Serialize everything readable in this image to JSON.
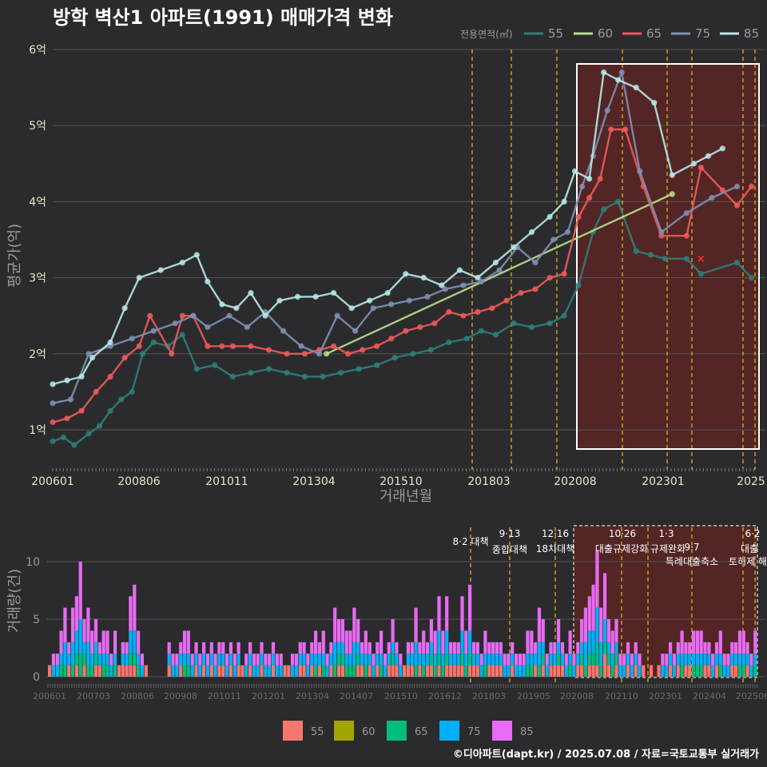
{
  "title": "방학 벽산1 아파트(1991) 매매가격 변화",
  "footer": "©디아파트(dapt.kr) / 2025.07.08 / 자료=국토교통부 실거래가",
  "colors": {
    "bg": "#2b2b2d",
    "grid": "#555555",
    "axis_text": "#e8e4c8",
    "muted": "#9a9a9a",
    "policy_line": "#e0c020",
    "highlight_fill": "#5a2424",
    "s55": "#2e7f7b",
    "s60": "#b8e08a",
    "s65": "#ef5a5a",
    "s75": "#7f8fb5",
    "s85": "#b6e8e6",
    "v55": "#f8766d",
    "v60": "#a3a500",
    "v65": "#00bf7d",
    "v75": "#00b0f6",
    "v85": "#e76bf3"
  },
  "chart_data": [
    {
      "type": "line",
      "title": "방학 벽산1 아파트(1991) 매매가격 변화",
      "xlabel": "거래년월",
      "ylabel": "평균가(억)",
      "x_ticks": [
        "200601",
        "200806",
        "201011",
        "201304",
        "201510",
        "201803",
        "202008",
        "202301",
        "2025"
      ],
      "y_ticks": [
        "1억",
        "2억",
        "3억",
        "4억",
        "5억",
        "6억"
      ],
      "ylim": [
        0.5,
        6.2
      ],
      "legend_title": "전용면적(㎡)",
      "legend_position": "top-right",
      "series": [
        {
          "name": "55",
          "points": [
            [
              2006.0,
              0.85
            ],
            [
              2006.3,
              0.9
            ],
            [
              2006.6,
              0.8
            ],
            [
              2007.0,
              0.95
            ],
            [
              2007.3,
              1.05
            ],
            [
              2007.6,
              1.25
            ],
            [
              2007.9,
              1.4
            ],
            [
              2008.2,
              1.5
            ],
            [
              2008.5,
              2.0
            ],
            [
              2008.8,
              2.15
            ],
            [
              2009.2,
              2.1
            ],
            [
              2009.6,
              2.25
            ],
            [
              2010.0,
              1.8
            ],
            [
              2010.5,
              1.85
            ],
            [
              2011.0,
              1.7
            ],
            [
              2011.5,
              1.75
            ],
            [
              2012.0,
              1.8
            ],
            [
              2012.5,
              1.75
            ],
            [
              2013.0,
              1.7
            ],
            [
              2013.5,
              1.7
            ],
            [
              2014.0,
              1.75
            ],
            [
              2014.5,
              1.8
            ],
            [
              2015.0,
              1.85
            ],
            [
              2015.5,
              1.95
            ],
            [
              2016.0,
              2.0
            ],
            [
              2016.5,
              2.05
            ],
            [
              2017.0,
              2.15
            ],
            [
              2017.5,
              2.2
            ],
            [
              2017.9,
              2.3
            ],
            [
              2018.3,
              2.25
            ],
            [
              2018.8,
              2.4
            ],
            [
              2019.3,
              2.35
            ],
            [
              2019.8,
              2.4
            ],
            [
              2020.2,
              2.5
            ],
            [
              2020.6,
              2.9
            ],
            [
              2021.0,
              3.6
            ],
            [
              2021.3,
              3.9
            ],
            [
              2021.7,
              4.0
            ],
            [
              2022.2,
              3.35
            ],
            [
              2022.6,
              3.3
            ],
            [
              2023.0,
              3.25
            ],
            [
              2023.6,
              3.25
            ],
            [
              2024.0,
              3.05
            ],
            [
              2025.0,
              3.2
            ],
            [
              2025.4,
              3.0
            ]
          ]
        },
        {
          "name": "60",
          "points": [
            [
              2013.6,
              2.0
            ],
            [
              2023.2,
              4.1
            ]
          ]
        },
        {
          "name": "65",
          "points": [
            [
              2006.0,
              1.1
            ],
            [
              2006.4,
              1.15
            ],
            [
              2006.8,
              1.25
            ],
            [
              2007.2,
              1.5
            ],
            [
              2007.6,
              1.7
            ],
            [
              2008.0,
              1.95
            ],
            [
              2008.4,
              2.1
            ],
            [
              2008.7,
              2.5
            ],
            [
              2009.3,
              2.0
            ],
            [
              2009.6,
              2.5
            ],
            [
              2009.9,
              2.5
            ],
            [
              2010.3,
              2.1
            ],
            [
              2010.7,
              2.1
            ],
            [
              2011.0,
              2.1
            ],
            [
              2011.5,
              2.1
            ],
            [
              2012.0,
              2.05
            ],
            [
              2012.5,
              2.0
            ],
            [
              2013.0,
              2.0
            ],
            [
              2013.4,
              2.05
            ],
            [
              2013.8,
              2.1
            ],
            [
              2014.2,
              2.0
            ],
            [
              2014.6,
              2.05
            ],
            [
              2015.0,
              2.1
            ],
            [
              2015.4,
              2.2
            ],
            [
              2015.8,
              2.3
            ],
            [
              2016.2,
              2.35
            ],
            [
              2016.6,
              2.4
            ],
            [
              2017.0,
              2.55
            ],
            [
              2017.4,
              2.5
            ],
            [
              2017.8,
              2.55
            ],
            [
              2018.2,
              2.6
            ],
            [
              2018.6,
              2.7
            ],
            [
              2019.0,
              2.8
            ],
            [
              2019.4,
              2.85
            ],
            [
              2019.8,
              3.0
            ],
            [
              2020.2,
              3.05
            ],
            [
              2020.6,
              3.8
            ],
            [
              2020.9,
              4.05
            ],
            [
              2021.2,
              4.3
            ],
            [
              2021.5,
              4.95
            ],
            [
              2021.9,
              4.95
            ],
            [
              2022.4,
              4.2
            ],
            [
              2022.9,
              3.55
            ],
            [
              2023.6,
              3.55
            ],
            [
              2024.0,
              4.45
            ],
            [
              2024.6,
              4.15
            ],
            [
              2025.0,
              3.95
            ],
            [
              2025.4,
              4.2
            ]
          ]
        },
        {
          "name": "75",
          "points": [
            [
              2006.0,
              1.35
            ],
            [
              2006.5,
              1.4
            ],
            [
              2007.0,
              2.0
            ],
            [
              2007.6,
              2.1
            ],
            [
              2008.2,
              2.2
            ],
            [
              2008.8,
              2.3
            ],
            [
              2009.4,
              2.4
            ],
            [
              2009.9,
              2.5
            ],
            [
              2010.3,
              2.35
            ],
            [
              2010.9,
              2.5
            ],
            [
              2011.4,
              2.35
            ],
            [
              2011.9,
              2.55
            ],
            [
              2012.4,
              2.3
            ],
            [
              2012.9,
              2.1
            ],
            [
              2013.4,
              2.0
            ],
            [
              2013.9,
              2.5
            ],
            [
              2014.4,
              2.3
            ],
            [
              2014.9,
              2.6
            ],
            [
              2015.4,
              2.65
            ],
            [
              2015.9,
              2.7
            ],
            [
              2016.4,
              2.75
            ],
            [
              2016.9,
              2.85
            ],
            [
              2017.4,
              2.9
            ],
            [
              2017.9,
              2.95
            ],
            [
              2018.4,
              3.1
            ],
            [
              2018.9,
              3.4
            ],
            [
              2019.4,
              3.2
            ],
            [
              2019.9,
              3.5
            ],
            [
              2020.3,
              3.6
            ],
            [
              2020.7,
              4.2
            ],
            [
              2021.0,
              4.6
            ],
            [
              2021.4,
              5.2
            ],
            [
              2021.8,
              5.7
            ],
            [
              2022.3,
              4.4
            ],
            [
              2022.9,
              3.6
            ],
            [
              2023.6,
              3.85
            ],
            [
              2024.3,
              4.05
            ],
            [
              2025.0,
              4.2
            ]
          ]
        },
        {
          "name": "85",
          "points": [
            [
              2006.0,
              1.6
            ],
            [
              2006.4,
              1.65
            ],
            [
              2006.8,
              1.7
            ],
            [
              2007.1,
              1.95
            ],
            [
              2007.6,
              2.15
            ],
            [
              2008.0,
              2.6
            ],
            [
              2008.4,
              3.0
            ],
            [
              2009.0,
              3.1
            ],
            [
              2009.6,
              3.2
            ],
            [
              2010.0,
              3.3
            ],
            [
              2010.3,
              2.95
            ],
            [
              2010.7,
              2.65
            ],
            [
              2011.1,
              2.6
            ],
            [
              2011.5,
              2.8
            ],
            [
              2011.9,
              2.5
            ],
            [
              2012.3,
              2.7
            ],
            [
              2012.8,
              2.75
            ],
            [
              2013.3,
              2.75
            ],
            [
              2013.8,
              2.8
            ],
            [
              2014.3,
              2.6
            ],
            [
              2014.8,
              2.7
            ],
            [
              2015.3,
              2.8
            ],
            [
              2015.8,
              3.05
            ],
            [
              2016.3,
              3.0
            ],
            [
              2016.8,
              2.9
            ],
            [
              2017.3,
              3.1
            ],
            [
              2017.8,
              3.0
            ],
            [
              2018.3,
              3.2
            ],
            [
              2018.8,
              3.4
            ],
            [
              2019.3,
              3.6
            ],
            [
              2019.8,
              3.8
            ],
            [
              2020.2,
              4.0
            ],
            [
              2020.5,
              4.4
            ],
            [
              2020.9,
              4.3
            ],
            [
              2021.3,
              5.7
            ],
            [
              2021.7,
              5.6
            ],
            [
              2022.2,
              5.5
            ],
            [
              2022.7,
              5.3
            ],
            [
              2023.2,
              4.35
            ],
            [
              2023.8,
              4.5
            ],
            [
              2024.2,
              4.6
            ],
            [
              2024.6,
              4.7
            ]
          ]
        }
      ],
      "marker_points": [
        {
          "x": 2024.0,
          "y": 3.25
        }
      ]
    },
    {
      "type": "bar",
      "ylabel": "거래량(건)",
      "x_ticks": [
        "200601",
        "200703",
        "200806",
        "200908",
        "201011",
        "201201",
        "201304",
        "201407",
        "201510",
        "201612",
        "201803",
        "201905",
        "202008",
        "202110",
        "202301",
        "202404",
        "202506"
      ],
      "y_ticks": [
        "0",
        "5",
        "10"
      ],
      "ylim": [
        0,
        12
      ],
      "legend": [
        "55",
        "60",
        "65",
        "75",
        "85"
      ],
      "volume_heights": [
        1,
        2,
        2,
        4,
        6,
        3,
        6,
        7,
        10,
        5,
        6,
        4,
        5,
        3,
        4,
        4,
        2,
        4,
        1,
        3,
        3,
        7,
        8,
        4,
        2,
        1,
        0,
        0,
        0,
        0,
        0,
        3,
        2,
        2,
        3,
        4,
        4,
        2,
        3,
        2,
        3,
        2,
        3,
        2,
        3,
        3,
        2,
        3,
        2,
        3,
        1,
        2,
        3,
        2,
        2,
        3,
        2,
        2,
        3,
        2,
        2,
        1,
        1,
        2,
        2,
        3,
        3,
        2,
        3,
        4,
        3,
        4,
        2,
        3,
        6,
        5,
        5,
        4,
        4,
        6,
        5,
        3,
        4,
        3,
        2,
        3,
        4,
        2,
        3,
        5,
        3,
        2,
        1,
        3,
        3,
        6,
        3,
        4,
        3,
        5,
        4,
        7,
        4,
        7,
        3,
        3,
        3,
        7,
        4,
        8,
        3,
        3,
        2,
        4,
        3,
        3,
        3,
        3,
        2,
        2,
        3,
        2,
        2,
        2,
        4,
        4,
        3,
        6,
        5,
        2,
        3,
        3,
        5,
        3,
        2,
        4,
        2,
        3,
        5,
        6,
        7,
        8,
        11,
        6,
        9,
        5,
        4,
        5,
        2,
        2,
        3,
        2,
        3,
        2,
        1,
        0,
        1,
        0,
        1,
        2,
        2,
        3,
        2,
        3,
        4,
        3,
        3,
        4,
        4,
        4,
        3,
        3,
        2,
        3,
        4,
        2,
        2,
        3,
        3,
        4,
        4,
        3,
        2,
        4
      ]
    }
  ],
  "policy_markers": [
    {
      "label_top": "8·2 대책",
      "label_bottom": ""
    },
    {
      "label_top": "9·13",
      "label_bottom": "종합대책"
    },
    {
      "label_top": "12·16",
      "label_bottom": "18차대책"
    },
    {
      "label_top": "10·26",
      "label_bottom": "대출규제강화"
    },
    {
      "label_top": "1·3",
      "label_bottom": "규제완화"
    },
    {
      "label_top": "9·7",
      "label_bottom": "특례대출축소"
    },
    {
      "label_top": "",
      "label_bottom": "토허제 해"
    },
    {
      "label_top": "6·2",
      "label_bottom": "대출"
    }
  ]
}
